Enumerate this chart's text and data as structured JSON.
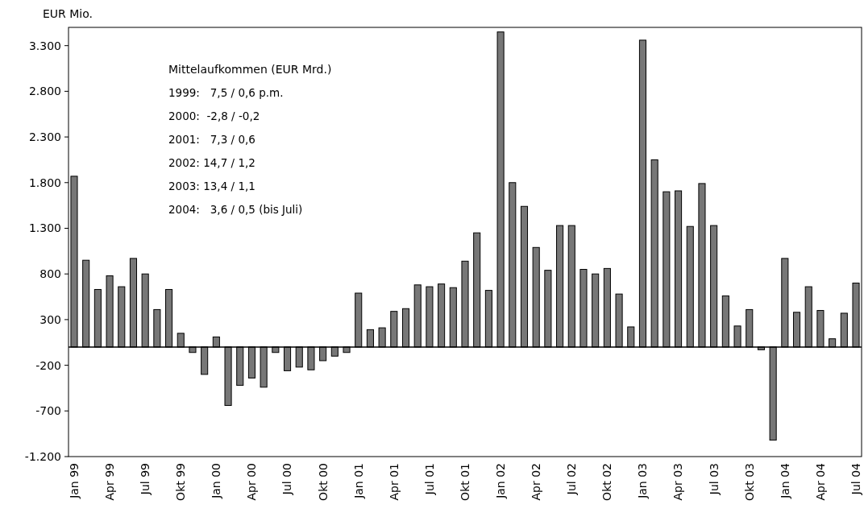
{
  "chart_data": {
    "type": "bar",
    "ylabel": "EUR Mio.",
    "categories": [
      "Jan 99",
      null,
      null,
      "Apr 99",
      null,
      null,
      "Jul 99",
      null,
      null,
      "Okt 99",
      null,
      null,
      "Jan 00",
      null,
      null,
      "Apr 00",
      null,
      null,
      "Jul 00",
      null,
      null,
      "Okt 00",
      null,
      null,
      "Jan 01",
      null,
      null,
      "Apr 01",
      null,
      null,
      "Jul 01",
      null,
      null,
      "Okt 01",
      null,
      null,
      "Jan 02",
      null,
      null,
      "Apr 02",
      null,
      null,
      "Jul 02",
      null,
      null,
      "Okt 02",
      null,
      null,
      "Jan 03",
      null,
      null,
      "Apr 03",
      null,
      null,
      "Jul 03",
      null,
      null,
      "Okt 03",
      null,
      null,
      "Jan 04",
      null,
      null,
      "Apr 04",
      null,
      null,
      "Jul 04"
    ],
    "values": [
      1870,
      950,
      630,
      780,
      660,
      970,
      800,
      410,
      630,
      150,
      -60,
      -300,
      110,
      -640,
      -420,
      -340,
      -440,
      -60,
      -260,
      -220,
      -250,
      -150,
      -100,
      -60,
      590,
      190,
      210,
      390,
      420,
      680,
      660,
      690,
      650,
      940,
      1250,
      620,
      3450,
      1800,
      1540,
      1090,
      840,
      1330,
      1330,
      850,
      800,
      860,
      580,
      220,
      3360,
      2050,
      1700,
      1710,
      1320,
      1790,
      1330,
      560,
      230,
      410,
      -30,
      -1020,
      970,
      380,
      660,
      400,
      90,
      370,
      700
    ],
    "color": "#777777",
    "ylim": [
      -1200,
      3500
    ],
    "yticks": [
      {
        "value": -1200,
        "label": "-1.200"
      },
      {
        "value": -700,
        "label": "-700"
      },
      {
        "value": -200,
        "label": "-200"
      },
      {
        "value": 300,
        "label": "300"
      },
      {
        "value": 800,
        "label": "800"
      },
      {
        "value": 1300,
        "label": "1.300"
      },
      {
        "value": 1800,
        "label": "1.800"
      },
      {
        "value": 2300,
        "label": "2.300"
      },
      {
        "value": 2800,
        "label": "2.800"
      },
      {
        "value": 3300,
        "label": "3.300"
      }
    ],
    "grid": false,
    "annotations": [
      "Mittelaufkommen (EUR Mrd.)",
      "1999:   7,5 / 0,6 p.m.",
      "2000:  -2,8 / -0,2",
      "2001:   7,3 / 0,6",
      "2002: 14,7 / 1,2",
      "2003: 13,4 / 1,1",
      "2004:   3,6 / 0,5 (bis Juli)"
    ]
  }
}
